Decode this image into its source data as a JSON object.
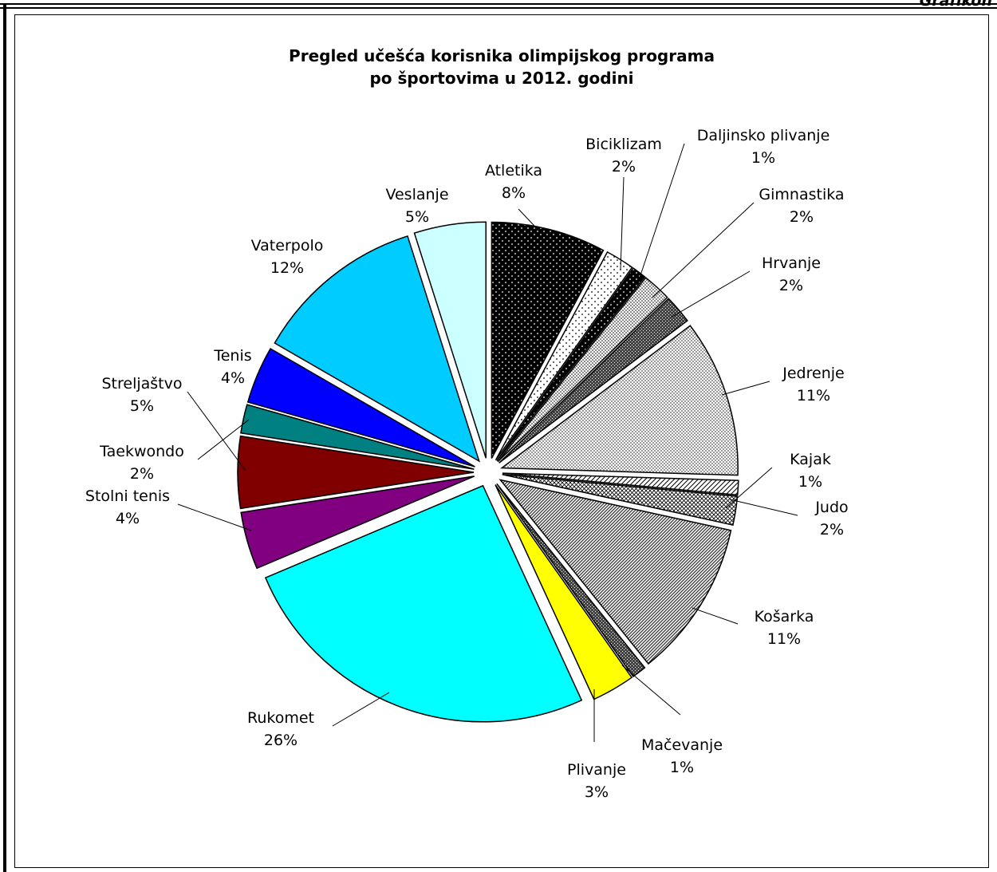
{
  "page": {
    "header_label": "Grafikon"
  },
  "chart_data": {
    "type": "pie",
    "title": "Pregled učešća korisnika olimpijskog programa po športovima u 2012. godini",
    "title_lines": [
      "Pregled učešća korisnika olimpijskog programa",
      "po športovima u 2012. godini"
    ],
    "legend": "none",
    "slices": [
      {
        "name": "Atletika",
        "value": 8,
        "label": "8%",
        "color": "#000000",
        "pattern": "dots-on-black"
      },
      {
        "name": "Biciklizam",
        "value": 2,
        "label": "2%",
        "color": "#ffffff",
        "pattern": "sparse-dots"
      },
      {
        "name": "Daljinsko plivanje",
        "value": 1,
        "label": "1%",
        "color": "#000000",
        "pattern": "dots-on-black"
      },
      {
        "name": "Gimnastika",
        "value": 2,
        "label": "2%",
        "color": "#ffffff",
        "pattern": "dense-dots"
      },
      {
        "name": "Hrvanje",
        "value": 2,
        "label": "2%",
        "color": "#555555",
        "pattern": "dark-checker"
      },
      {
        "name": "Jedrenje",
        "value": 11,
        "label": "11%",
        "color": "#c0c0c0",
        "pattern": "light-checker"
      },
      {
        "name": "Kajak",
        "value": 1,
        "label": "1%",
        "color": "#ffffff",
        "pattern": "diagonal-lines"
      },
      {
        "name": "Judo",
        "value": 2,
        "label": "2%",
        "color": "#ffffff",
        "pattern": "cross-hatch"
      },
      {
        "name": "Košarka",
        "value": 11,
        "label": "11%",
        "color": "#888888",
        "pattern": "dense-diagonal"
      },
      {
        "name": "Mačevanje",
        "value": 1,
        "label": "1%",
        "color": "#666666",
        "pattern": "dark-checker"
      },
      {
        "name": "Plivanje",
        "value": 3,
        "label": "3%",
        "color": "#ffff00",
        "pattern": "solid"
      },
      {
        "name": "Rukomet",
        "value": 26,
        "label": "26%",
        "color": "#00ffff",
        "pattern": "solid"
      },
      {
        "name": "Stolni tenis",
        "value": 4,
        "label": "4%",
        "color": "#800080",
        "pattern": "solid"
      },
      {
        "name": "Streljaštvo",
        "value": 5,
        "label": "5%",
        "color": "#800000",
        "pattern": "solid"
      },
      {
        "name": "Taekwondo",
        "value": 2,
        "label": "2%",
        "color": "#008080",
        "pattern": "solid"
      },
      {
        "name": "Tenis",
        "value": 4,
        "label": "4%",
        "color": "#0000ff",
        "pattern": "solid"
      },
      {
        "name": "Vaterpolo",
        "value": 12,
        "label": "12%",
        "color": "#00ccff",
        "pattern": "solid"
      },
      {
        "name": "Veslanje",
        "value": 5,
        "label": "5%",
        "color": "#ccffff",
        "pattern": "solid"
      }
    ]
  }
}
